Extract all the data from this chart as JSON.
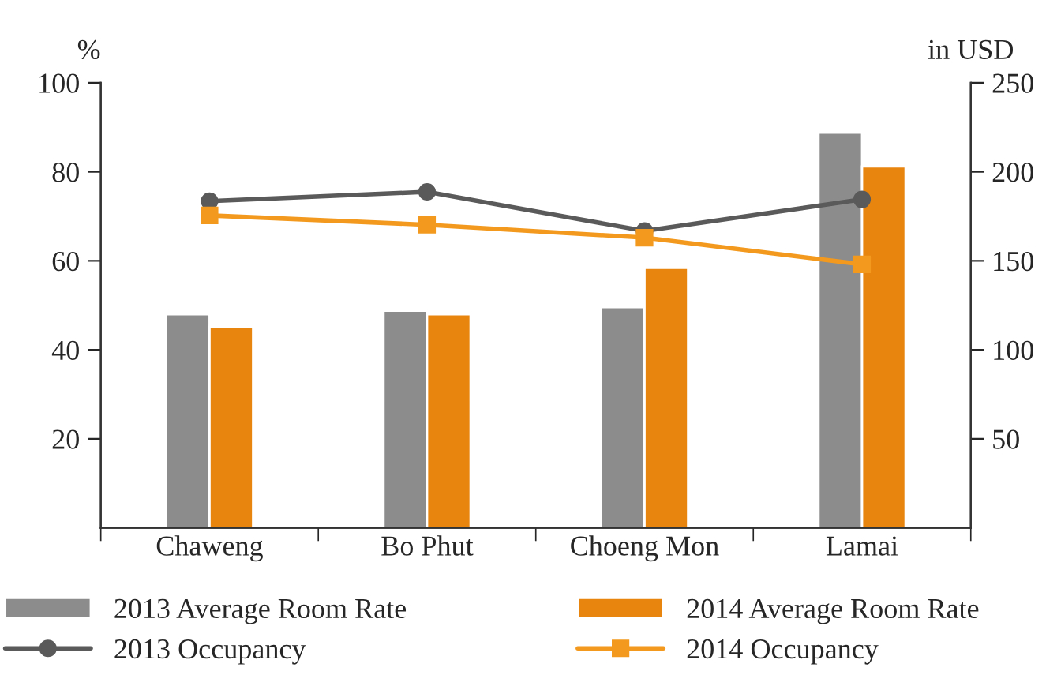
{
  "chart_data": {
    "type": "bar",
    "categories": [
      "Chaweng",
      "Bo Phut",
      "Choeng Mon",
      "Lamai"
    ],
    "ylabel": "%",
    "y2label": "in USD",
    "series": [
      {
        "name": "2013 Average Room Rate",
        "axis": "y2",
        "color": "#8c8c8c",
        "values": [
          120,
          122,
          124,
          222
        ]
      },
      {
        "name": "2014 Average Room Rate",
        "axis": "y2",
        "color": "#e8850f",
        "values": [
          113,
          120,
          146,
          203
        ]
      },
      {
        "name": "2013 Occupancy",
        "type": "line",
        "axis": "y",
        "color": "#5a5a5a",
        "marker": "circle",
        "values": [
          73.4,
          75.5,
          66.7,
          73.8
        ]
      },
      {
        "name": "2014 Occupancy",
        "type": "line",
        "axis": "y",
        "color": "#f39a1e",
        "marker": "square",
        "values": [
          70.2,
          68.1,
          65.2,
          59.2
        ]
      }
    ],
    "ylim": [
      0,
      100
    ],
    "yticks": [
      20,
      40,
      60,
      80,
      100
    ],
    "y2lim": [
      0,
      250
    ],
    "y2ticks": [
      50,
      100,
      150,
      200,
      250
    ],
    "grid": false,
    "legend": "bottom"
  }
}
